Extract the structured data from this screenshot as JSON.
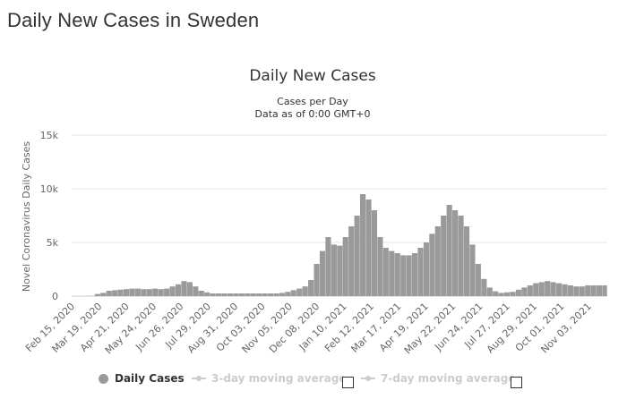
{
  "page": {
    "title": "Daily New Cases in Sweden"
  },
  "colors": {
    "bars": "#9a9a9a",
    "grid": "#e6e6e6",
    "text": "#333333",
    "axis_text": "#666666",
    "inactive": "#cccccc"
  },
  "chart_data": {
    "type": "bar",
    "title": "Daily New Cases",
    "subtitle_line1": "Cases per Day",
    "subtitle_line2": "Data as of 0:00 GMT+0",
    "ylabel": "Novel Coronavirus Daily Cases",
    "xlabel": "",
    "ylim": [
      0,
      15000
    ],
    "y_ticks": [
      0,
      5000,
      10000,
      15000
    ],
    "y_tick_labels": [
      "0",
      "5k",
      "10k",
      "15k"
    ],
    "x_range": [
      "2020-02-15",
      "2021-11-26"
    ],
    "x_ticks": [
      "2020-02-15",
      "2020-03-19",
      "2020-04-21",
      "2020-05-24",
      "2020-06-26",
      "2020-07-29",
      "2020-08-31",
      "2020-10-03",
      "2020-11-05",
      "2020-12-08",
      "2021-01-10",
      "2021-02-12",
      "2021-03-17",
      "2021-04-19",
      "2021-05-22",
      "2021-06-24",
      "2021-07-27",
      "2021-08-29",
      "2021-10-01",
      "2021-11-03"
    ],
    "x_tick_labels": [
      "Feb 15, 2020",
      "Mar 19, 2020",
      "Apr 21, 2020",
      "May 24, 2020",
      "Jun 26, 2020",
      "Jul 29, 2020",
      "Aug 31, 2020",
      "Oct 03, 2020",
      "Nov 05, 2020",
      "Dec 08, 2020",
      "Jan 10, 2021",
      "Feb 12, 2021",
      "Mar 17, 2021",
      "Apr 19, 2021",
      "May 22, 2021",
      "Jun 24, 2021",
      "Jul 27, 2021",
      "Aug 29, 2021",
      "Oct 01, 2021",
      "Nov 03, 2021"
    ],
    "grid": true,
    "legend_position": "bottom",
    "series": [
      {
        "name": "Daily Cases",
        "weekly_start": "2020-02-15",
        "weekly_values": [
          0,
          0,
          0,
          10,
          200,
          300,
          500,
          550,
          600,
          650,
          700,
          700,
          650,
          650,
          700,
          650,
          700,
          900,
          1100,
          1400,
          1300,
          900,
          500,
          350,
          250,
          250,
          250,
          250,
          250,
          250,
          250,
          250,
          250,
          250,
          250,
          250,
          300,
          400,
          550,
          700,
          900,
          1500,
          3000,
          4200,
          5500,
          4800,
          4700,
          5500,
          6500,
          7500,
          9500,
          9000,
          8000,
          5500,
          4500,
          4200,
          4000,
          3800,
          3800,
          4000,
          4500,
          5000,
          5800,
          6500,
          7500,
          8500,
          8000,
          7500,
          6500,
          4800,
          3000,
          1600,
          800,
          450,
          300,
          350,
          400,
          600,
          800,
          1000,
          1200,
          1300,
          1400,
          1300,
          1200,
          1100,
          1000,
          900,
          900,
          1000,
          1000,
          1000,
          1000,
          1000,
          1100,
          1300,
          2200
        ]
      },
      {
        "name": "3-day moving average",
        "visible": false
      },
      {
        "name": "7-day moving average",
        "visible": false
      }
    ]
  },
  "legend": {
    "daily_cases": "Daily Cases",
    "avg3": "3-day moving average",
    "avg7": "7-day moving average"
  }
}
